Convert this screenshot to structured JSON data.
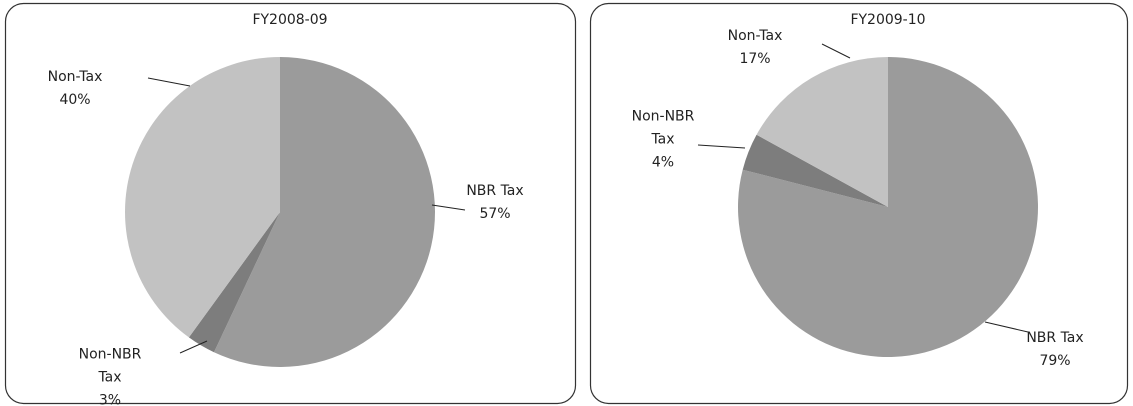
{
  "chart_data": [
    {
      "type": "pie",
      "title": "FY2008-09",
      "categories": [
        "NBR Tax",
        "Non-NBR Tax",
        "Non-Tax"
      ],
      "values": [
        57,
        3,
        40
      ],
      "value_labels": [
        "57%",
        "3%",
        "40%"
      ],
      "colors": [
        "#9b9b9b",
        "#7d7d7d",
        "#c2c2c2"
      ]
    },
    {
      "type": "pie",
      "title": "FY2009-10",
      "categories": [
        "NBR Tax",
        "Non-NBR Tax",
        "Non-Tax"
      ],
      "values": [
        79,
        4,
        17
      ],
      "value_labels": [
        "79%",
        "4%",
        "17%"
      ],
      "colors": [
        "#9b9b9b",
        "#7d7d7d",
        "#c2c2c2"
      ]
    }
  ]
}
